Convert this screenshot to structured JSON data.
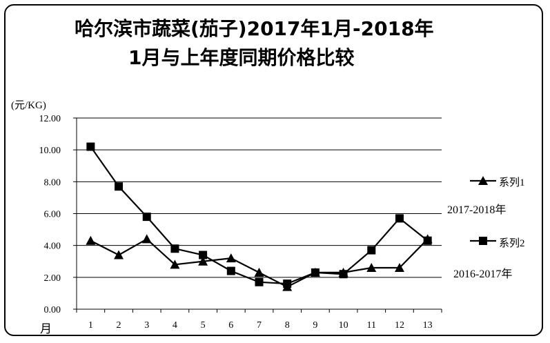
{
  "chart_data": {
    "type": "line",
    "title_line1": "哈尔滨市蔬菜(茄子)2017年1月-2018年",
    "title_line2": "1月与上年度同期价格比较",
    "ylabel": "(元/KG)",
    "xlabel": "月",
    "ylim": [
      0,
      12
    ],
    "yticks": [
      "0.00",
      "2.00",
      "4.00",
      "6.00",
      "8.00",
      "10.00",
      "12.00"
    ],
    "x": [
      1,
      2,
      3,
      4,
      5,
      6,
      7,
      8,
      9,
      10,
      11,
      12,
      13
    ],
    "grid": true,
    "series": [
      {
        "name": "系列1",
        "period": "2016-2017年",
        "marker": "triangle",
        "values": [
          4.3,
          3.4,
          4.4,
          2.8,
          3.0,
          3.2,
          2.3,
          1.4,
          2.3,
          2.3,
          2.6,
          2.6,
          4.4
        ]
      },
      {
        "name": "系列2",
        "period": "2017-2018年",
        "marker": "square",
        "values": [
          10.2,
          7.7,
          5.8,
          3.8,
          3.4,
          2.4,
          1.7,
          1.6,
          2.3,
          2.2,
          3.7,
          5.7,
          4.3
        ]
      }
    ],
    "legend_position": "right"
  }
}
